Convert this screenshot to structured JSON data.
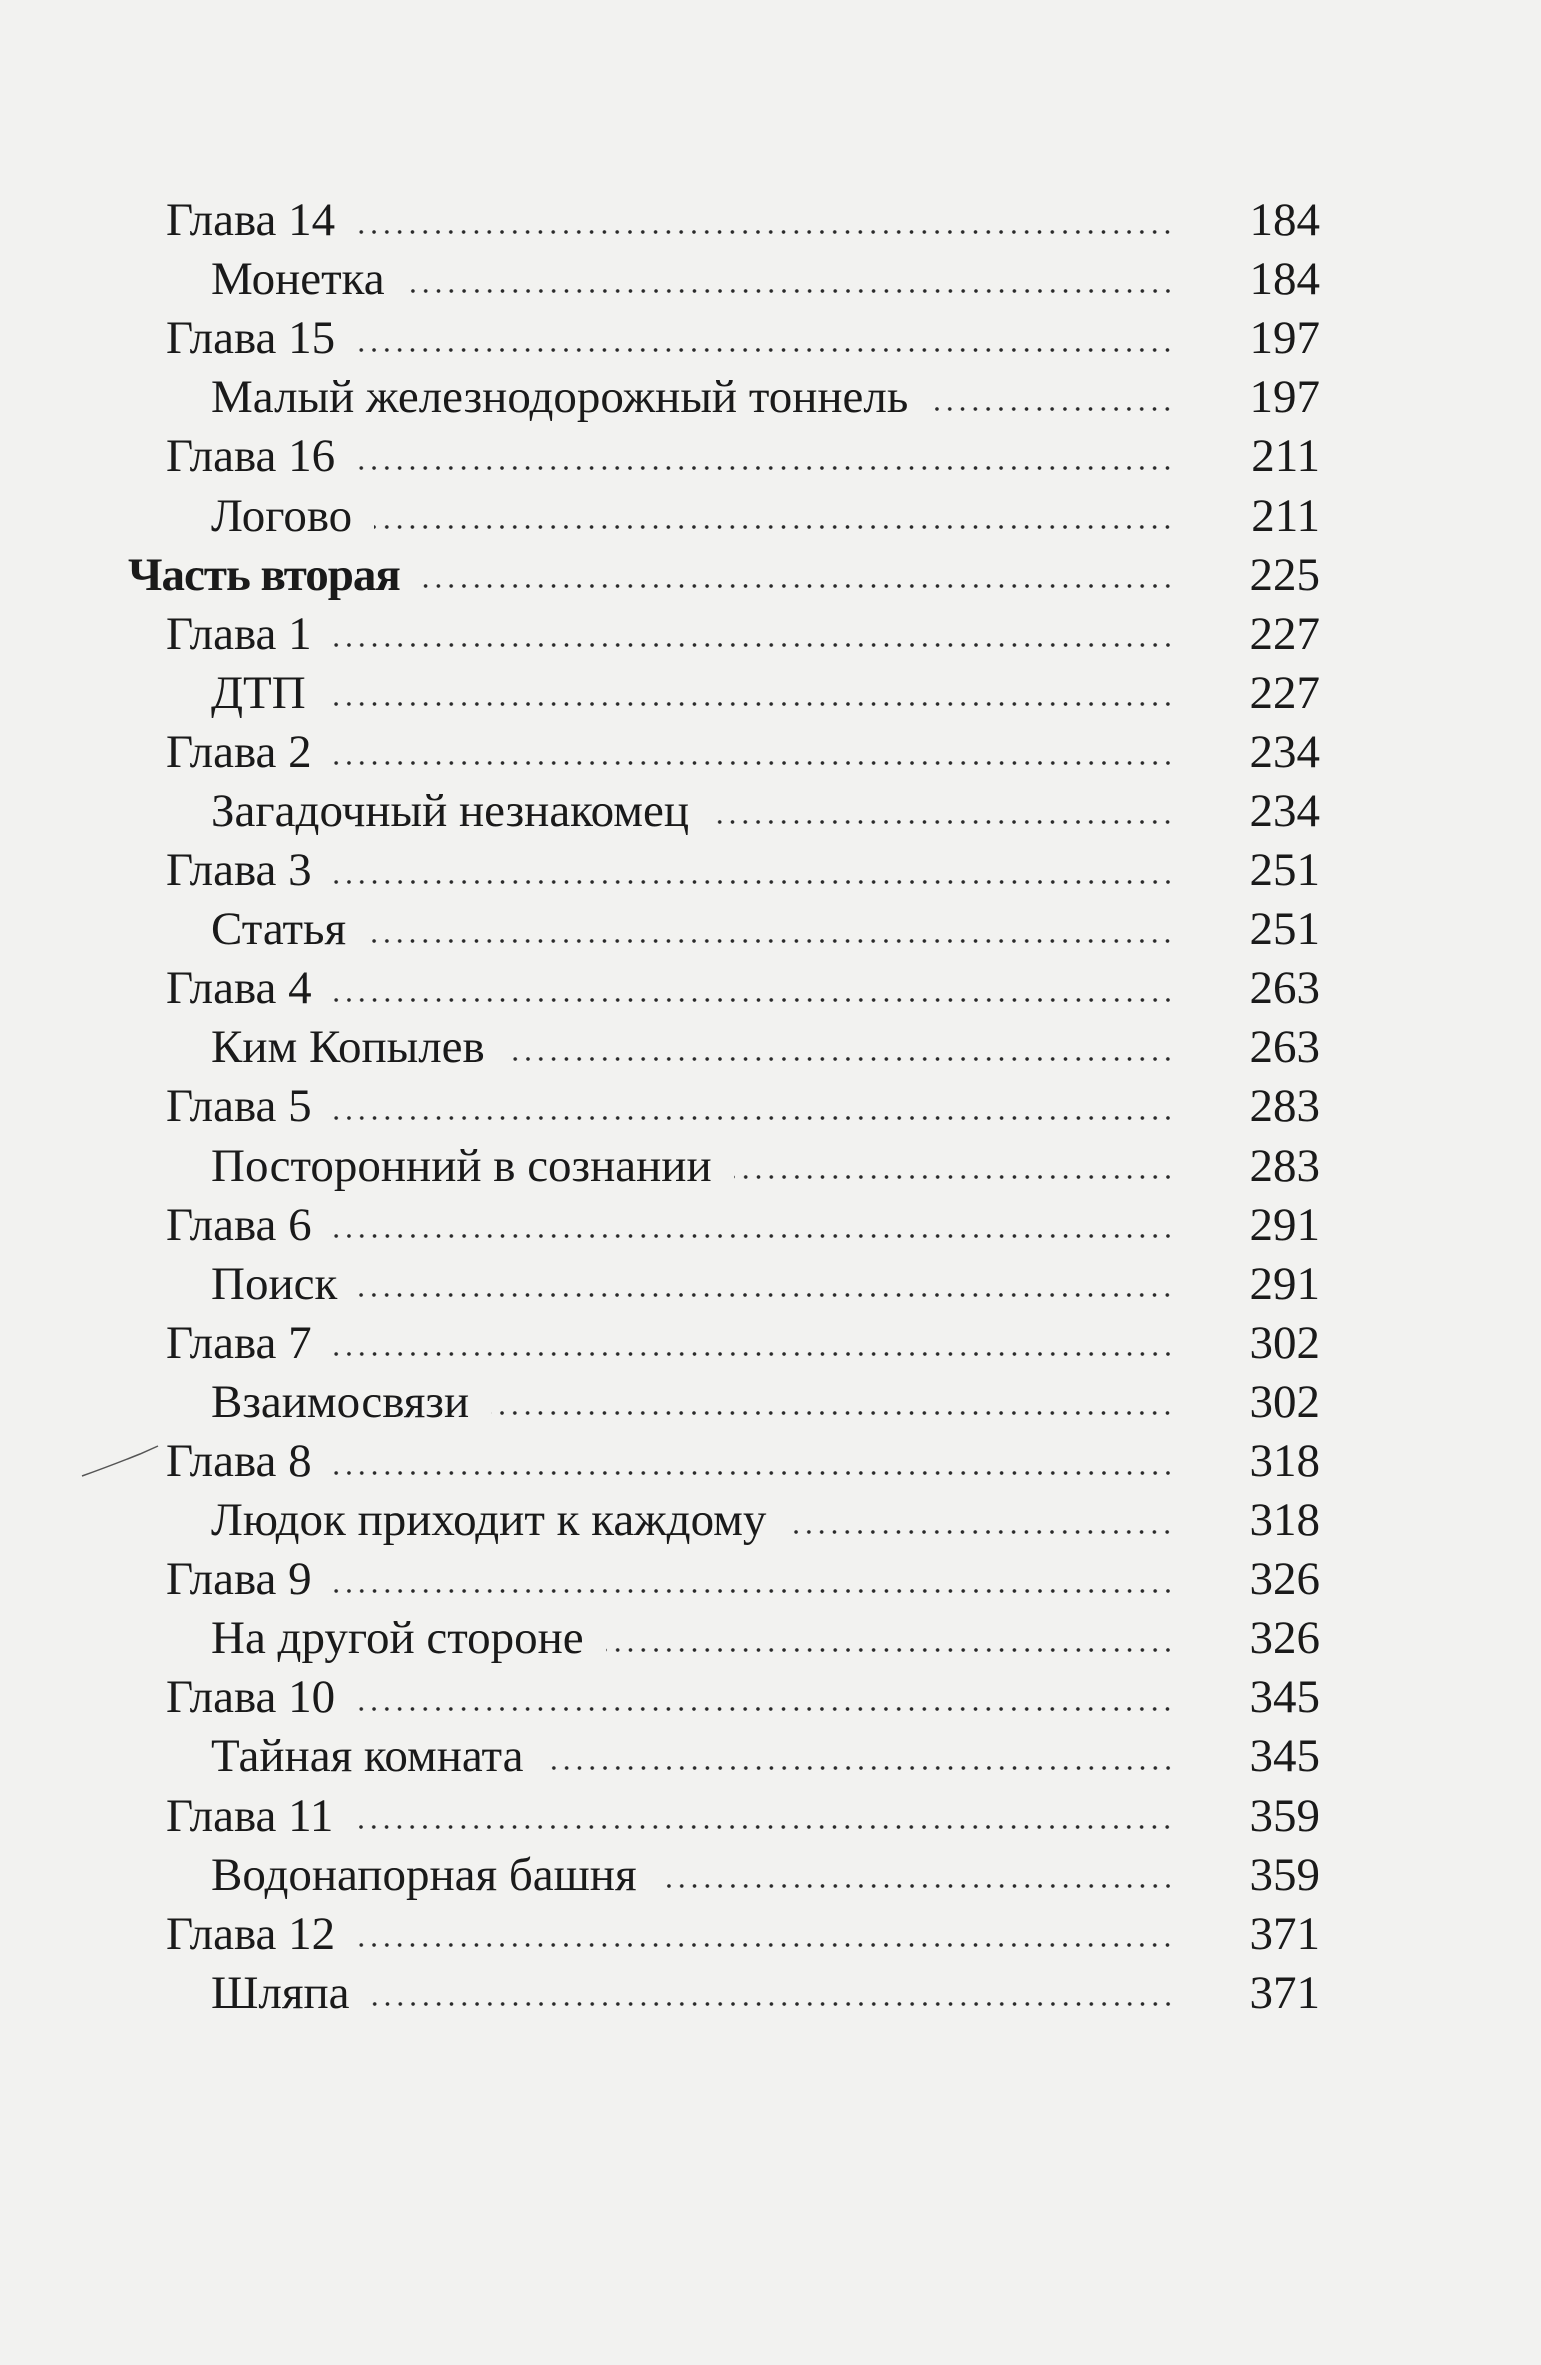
{
  "toc": [
    {
      "level": "chapter",
      "title": "Глава 14",
      "page": "184"
    },
    {
      "level": "section",
      "title": "Монетка",
      "page": "184"
    },
    {
      "level": "chapter",
      "title": "Глава 15",
      "page": "197"
    },
    {
      "level": "section",
      "title": "Малый железнодорожный тоннель",
      "page": "197"
    },
    {
      "level": "chapter",
      "title": "Глава 16",
      "page": "211"
    },
    {
      "level": "section",
      "title": "Логово",
      "page": "211"
    },
    {
      "level": "part",
      "title": "Часть вторая",
      "page": "225"
    },
    {
      "level": "chapter",
      "title": "Глава 1",
      "page": "227"
    },
    {
      "level": "section",
      "title": "ДТП",
      "page": "227"
    },
    {
      "level": "chapter",
      "title": "Глава 2",
      "page": "234"
    },
    {
      "level": "section",
      "title": "Загадочный незнакомец",
      "page": "234"
    },
    {
      "level": "chapter",
      "title": "Глава 3",
      "page": "251"
    },
    {
      "level": "section",
      "title": "Статья",
      "page": "251"
    },
    {
      "level": "chapter",
      "title": "Глава 4",
      "page": "263"
    },
    {
      "level": "section",
      "title": "Ким Копылев",
      "page": "263"
    },
    {
      "level": "chapter",
      "title": "Глава 5",
      "page": "283"
    },
    {
      "level": "section",
      "title": "Посторонний в сознании",
      "page": "283"
    },
    {
      "level": "chapter",
      "title": "Глава 6",
      "page": "291"
    },
    {
      "level": "section",
      "title": "Поиск",
      "page": "291"
    },
    {
      "level": "chapter",
      "title": "Глава 7",
      "page": "302"
    },
    {
      "level": "section",
      "title": "Взаимосвязи",
      "page": "302"
    },
    {
      "level": "chapter",
      "title": "Глава 8",
      "page": "318"
    },
    {
      "level": "section",
      "title": "Людок приходит к каждому",
      "page": "318"
    },
    {
      "level": "chapter",
      "title": "Глава 9",
      "page": "326"
    },
    {
      "level": "section",
      "title": "На другой стороне",
      "page": "326"
    },
    {
      "level": "chapter",
      "title": "Глава 10",
      "page": "345"
    },
    {
      "level": "section",
      "title": "Тайная комната",
      "page": "345"
    },
    {
      "level": "chapter",
      "title": "Глава 11",
      "page": "359"
    },
    {
      "level": "section",
      "title": "Водонапорная башня",
      "page": "359"
    },
    {
      "level": "chapter",
      "title": "Глава 12",
      "page": "371"
    },
    {
      "level": "section",
      "title": "Шляпа",
      "page": "371"
    }
  ]
}
